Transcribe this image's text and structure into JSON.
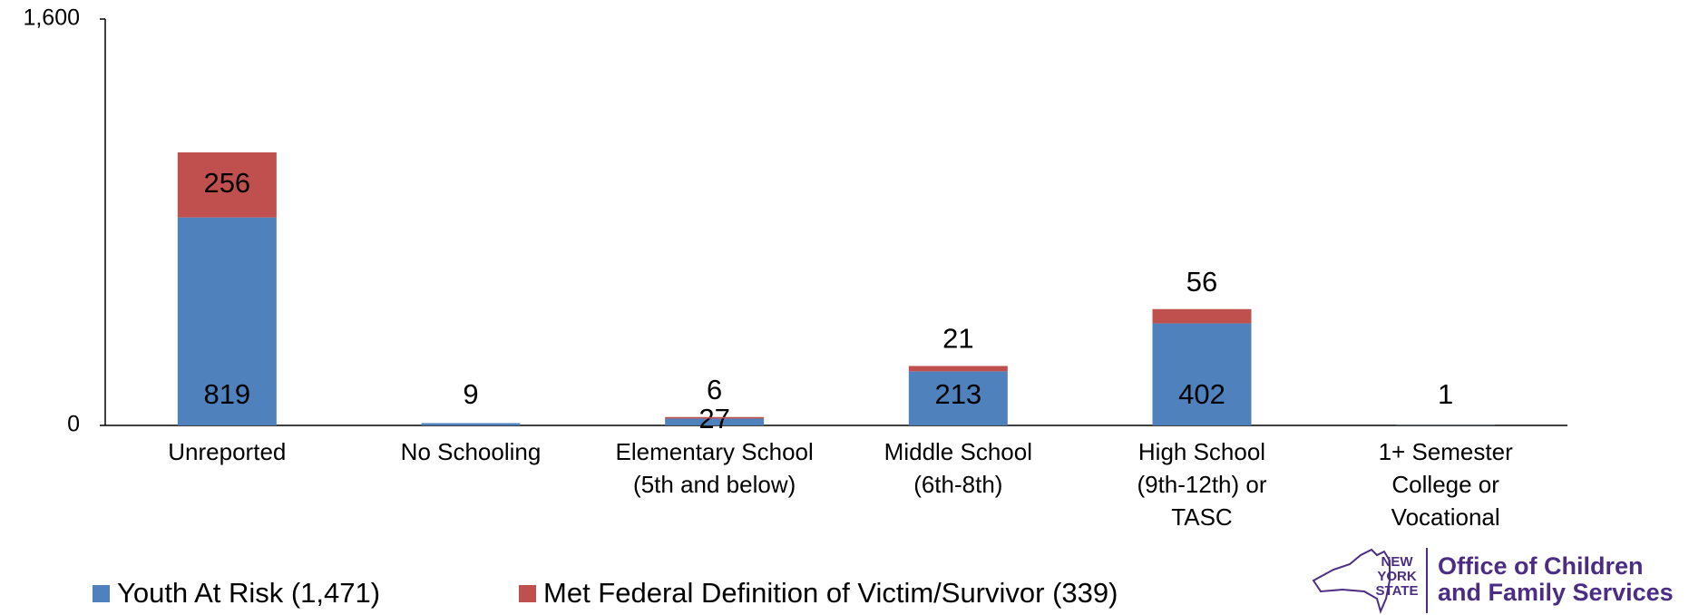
{
  "chart_data": {
    "type": "stacked_bar",
    "categories": [
      [
        "Unreported"
      ],
      [
        "No Schooling"
      ],
      [
        "Elementary School",
        "(5th and below)"
      ],
      [
        "Middle School",
        "(6th-8th)"
      ],
      [
        "High School",
        "(9th-12th) or",
        "TASC"
      ],
      [
        "1+ Semester",
        "College or",
        "Vocational"
      ]
    ],
    "series": [
      {
        "name": "Youth At Risk (1,471)",
        "color": "#4f81bd",
        "values": [
          819,
          9,
          27,
          213,
          402,
          1
        ]
      },
      {
        "name": "Met Federal Definition of Victim/Survivor (339)",
        "color": "#c0504d",
        "values": [
          256,
          null,
          6,
          21,
          56,
          null
        ]
      }
    ],
    "ylim": [
      0,
      1600
    ],
    "yticks": [
      0,
      {
        "value": 1600,
        "label": "1,600"
      }
    ],
    "legend": "bottom-left"
  },
  "logo": {
    "state": [
      "NEW",
      "YORK",
      "STATE"
    ],
    "agency": [
      "Office of Children",
      "and Family Services"
    ]
  }
}
